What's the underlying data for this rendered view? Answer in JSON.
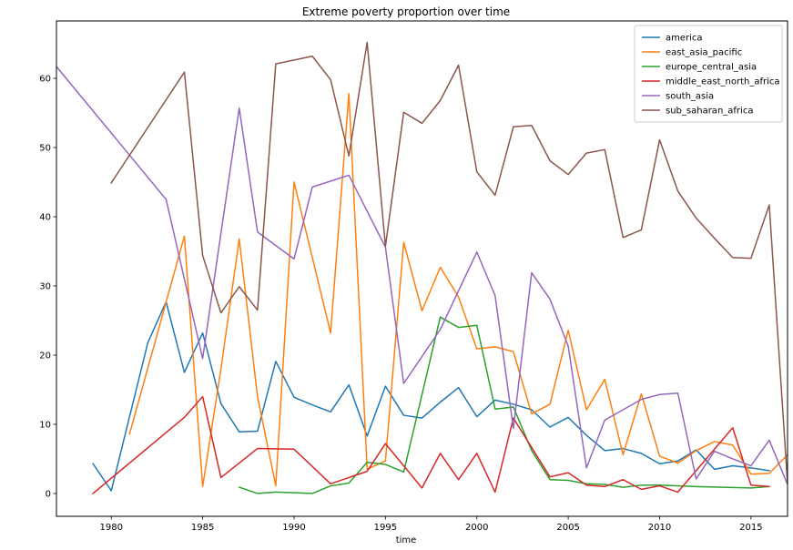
{
  "chart_data": {
    "type": "line",
    "title": "Extreme poverty proportion over time",
    "xlabel": "time",
    "ylabel": "",
    "xlim": [
      1977,
      2017
    ],
    "ylim": [
      -3.3,
      68.3
    ],
    "xticks": [
      1980,
      1985,
      1990,
      1995,
      2000,
      2005,
      2010,
      2015
    ],
    "yticks": [
      0,
      10,
      20,
      30,
      40,
      50,
      60
    ],
    "legend_position": "top-right",
    "grid": false,
    "series": [
      {
        "name": "america",
        "color": "#1f77b4",
        "points": [
          [
            1979,
            4.3
          ],
          [
            1980,
            0.4
          ],
          [
            1982,
            21.8
          ],
          [
            1983,
            27.7
          ],
          [
            1984,
            17.5
          ],
          [
            1985,
            23.2
          ],
          [
            1986,
            13.0
          ],
          [
            1987,
            8.9
          ],
          [
            1988,
            9.0
          ],
          [
            1989,
            19.1
          ],
          [
            1990,
            13.9
          ],
          [
            1991,
            12.8
          ],
          [
            1992,
            11.8
          ],
          [
            1993,
            15.7
          ],
          [
            1994,
            8.3
          ],
          [
            1995,
            15.5
          ],
          [
            1996,
            11.3
          ],
          [
            1997,
            10.9
          ],
          [
            1998,
            13.2
          ],
          [
            1999,
            15.3
          ],
          [
            2000,
            11.1
          ],
          [
            2001,
            13.5
          ],
          [
            2002,
            12.9
          ],
          [
            2003,
            12.1
          ],
          [
            2004,
            9.6
          ],
          [
            2005,
            11.0
          ],
          [
            2006,
            8.4
          ],
          [
            2007,
            6.2
          ],
          [
            2008,
            6.5
          ],
          [
            2009,
            5.8
          ],
          [
            2010,
            4.3
          ],
          [
            2011,
            4.7
          ],
          [
            2012,
            6.3
          ],
          [
            2013,
            3.5
          ],
          [
            2014,
            4.0
          ],
          [
            2015,
            3.7
          ],
          [
            2016,
            3.3
          ]
        ]
      },
      {
        "name": "east_asia_pacific",
        "color": "#ff7f0e",
        "points": [
          [
            1981,
            8.6
          ],
          [
            1984,
            37.2
          ],
          [
            1985,
            1.0
          ],
          [
            1986,
            18.0
          ],
          [
            1987,
            36.8
          ],
          [
            1988,
            14.0
          ],
          [
            1989,
            1.1
          ],
          [
            1990,
            45.0
          ],
          [
            1992,
            23.2
          ],
          [
            1993,
            57.8
          ],
          [
            1994,
            3.5
          ],
          [
            1995,
            4.7
          ],
          [
            1996,
            36.3
          ],
          [
            1997,
            26.4
          ],
          [
            1998,
            32.7
          ],
          [
            1999,
            28.4
          ],
          [
            2000,
            20.9
          ],
          [
            2001,
            21.2
          ],
          [
            2002,
            20.5
          ],
          [
            2003,
            11.5
          ],
          [
            2004,
            12.9
          ],
          [
            2005,
            23.6
          ],
          [
            2006,
            12.1
          ],
          [
            2007,
            16.5
          ],
          [
            2008,
            5.6
          ],
          [
            2009,
            14.4
          ],
          [
            2010,
            5.4
          ],
          [
            2011,
            4.4
          ],
          [
            2012,
            6.2
          ],
          [
            2013,
            7.5
          ],
          [
            2014,
            7.0
          ],
          [
            2015,
            2.8
          ],
          [
            2016,
            2.9
          ],
          [
            2017,
            5.6
          ]
        ]
      },
      {
        "name": "europe_central_asia",
        "color": "#2ca02c",
        "points": [
          [
            1987,
            0.9
          ],
          [
            1988,
            0.0
          ],
          [
            1989,
            0.2
          ],
          [
            1991,
            0.0
          ],
          [
            1992,
            1.1
          ],
          [
            1993,
            1.5
          ],
          [
            1994,
            4.5
          ],
          [
            1995,
            4.2
          ],
          [
            1996,
            3.1
          ],
          [
            1998,
            25.5
          ],
          [
            1999,
            24.0
          ],
          [
            2000,
            24.3
          ],
          [
            2001,
            12.2
          ],
          [
            2002,
            12.5
          ],
          [
            2003,
            6.2
          ],
          [
            2004,
            2.0
          ],
          [
            2005,
            1.9
          ],
          [
            2006,
            1.4
          ],
          [
            2007,
            1.3
          ],
          [
            2008,
            0.9
          ],
          [
            2009,
            1.2
          ],
          [
            2010,
            1.2
          ],
          [
            2012,
            1.0
          ],
          [
            2015,
            0.8
          ],
          [
            2016,
            1.0
          ]
        ]
      },
      {
        "name": "middle_east_north_africa",
        "color": "#d62728",
        "points": [
          [
            1979,
            0.0
          ],
          [
            1984,
            11.0
          ],
          [
            1985,
            14.0
          ],
          [
            1986,
            2.3
          ],
          [
            1988,
            6.5
          ],
          [
            1990,
            6.4
          ],
          [
            1992,
            1.4
          ],
          [
            1994,
            3.2
          ],
          [
            1995,
            7.2
          ],
          [
            1997,
            0.8
          ],
          [
            1998,
            5.8
          ],
          [
            1999,
            2.0
          ],
          [
            2000,
            5.8
          ],
          [
            2001,
            0.2
          ],
          [
            2002,
            10.9
          ],
          [
            2004,
            2.4
          ],
          [
            2005,
            3.0
          ],
          [
            2006,
            1.2
          ],
          [
            2007,
            1.0
          ],
          [
            2008,
            2.0
          ],
          [
            2009,
            0.6
          ],
          [
            2010,
            1.1
          ],
          [
            2011,
            0.2
          ],
          [
            2014,
            9.5
          ],
          [
            2015,
            1.2
          ],
          [
            2016,
            1.0
          ]
        ]
      },
      {
        "name": "south_asia",
        "color": "#9467bd",
        "points": [
          [
            1977,
            61.7
          ],
          [
            1983,
            42.5
          ],
          [
            1985,
            19.5
          ],
          [
            1987,
            55.7
          ],
          [
            1988,
            37.8
          ],
          [
            1990,
            33.9
          ],
          [
            1991,
            44.3
          ],
          [
            1993,
            46.0
          ],
          [
            1995,
            35.6
          ],
          [
            1996,
            15.9
          ],
          [
            1998,
            23.7
          ],
          [
            2000,
            34.9
          ],
          [
            2001,
            28.6
          ],
          [
            2002,
            9.4
          ],
          [
            2003,
            31.9
          ],
          [
            2004,
            28.1
          ],
          [
            2005,
            21.3
          ],
          [
            2006,
            3.7
          ],
          [
            2007,
            10.6
          ],
          [
            2008,
            12.1
          ],
          [
            2009,
            13.6
          ],
          [
            2010,
            14.3
          ],
          [
            2011,
            14.5
          ],
          [
            2012,
            2.1
          ],
          [
            2013,
            6.1
          ],
          [
            2014,
            5.0
          ],
          [
            2015,
            4.0
          ],
          [
            2016,
            7.7
          ],
          [
            2017,
            1.3
          ]
        ]
      },
      {
        "name": "sub_saharan_africa",
        "color": "#8c564b",
        "points": [
          [
            1980,
            44.9
          ],
          [
            1984,
            60.9
          ],
          [
            1985,
            34.4
          ],
          [
            1986,
            26.1
          ],
          [
            1987,
            29.9
          ],
          [
            1988,
            26.5
          ],
          [
            1989,
            62.1
          ],
          [
            1991,
            63.2
          ],
          [
            1992,
            59.8
          ],
          [
            1993,
            48.8
          ],
          [
            1994,
            65.2
          ],
          [
            1995,
            35.7
          ],
          [
            1996,
            55.1
          ],
          [
            1997,
            53.5
          ],
          [
            1998,
            56.8
          ],
          [
            1999,
            61.9
          ],
          [
            2000,
            46.5
          ],
          [
            2001,
            43.1
          ],
          [
            2002,
            53.0
          ],
          [
            2003,
            53.2
          ],
          [
            2004,
            48.1
          ],
          [
            2005,
            46.1
          ],
          [
            2006,
            49.2
          ],
          [
            2007,
            49.7
          ],
          [
            2008,
            37.0
          ],
          [
            2009,
            38.1
          ],
          [
            2010,
            51.1
          ],
          [
            2011,
            43.7
          ],
          [
            2012,
            39.8
          ],
          [
            2013,
            36.9
          ],
          [
            2014,
            34.1
          ],
          [
            2015,
            34.0
          ],
          [
            2016,
            41.7
          ],
          [
            2017,
            1.5
          ]
        ]
      }
    ]
  }
}
